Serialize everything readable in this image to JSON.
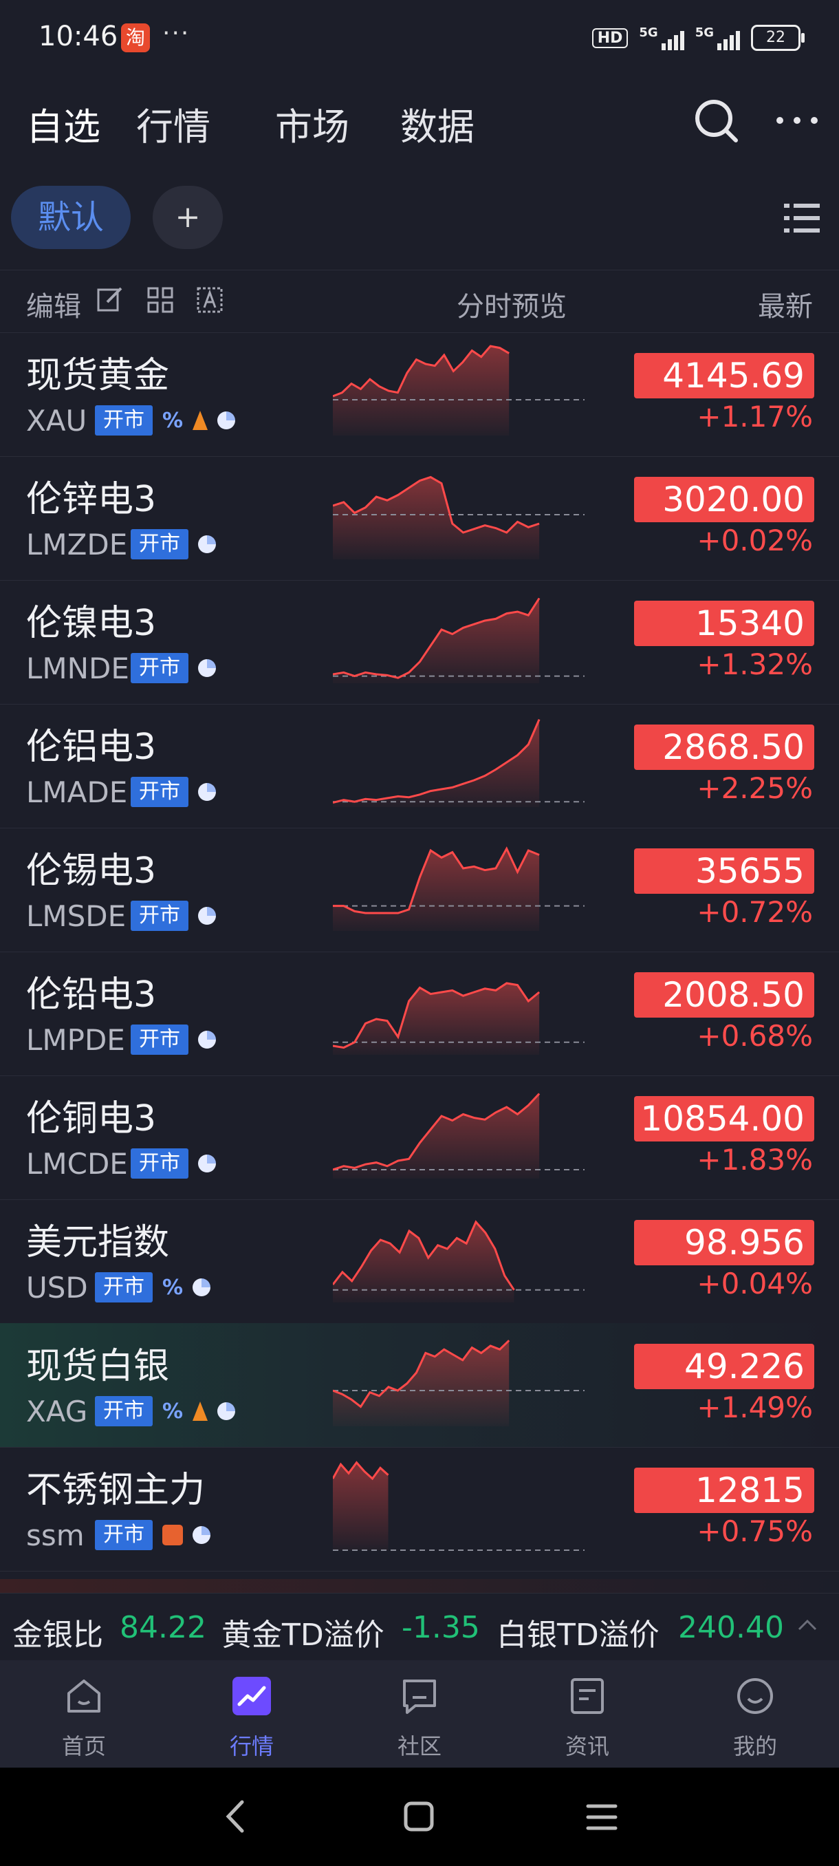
{
  "status_bar": {
    "time": "10:46",
    "app_badge": "淘",
    "dots": "···",
    "hd": "HD",
    "sig1": "5G",
    "sig2": "5G",
    "battery": "22"
  },
  "nav": {
    "tabs": [
      "自选",
      "行情",
      "市场",
      "数据"
    ]
  },
  "chips": {
    "default_label": "默认",
    "add_label": "+"
  },
  "header": {
    "edit_label": "编辑",
    "preview_label": "分时预览",
    "latest_label": "最新"
  },
  "open_label": "开市",
  "rows": [
    {
      "name": "现货黄金",
      "code": "XAU",
      "price": "4145.69",
      "change": "+1.17%",
      "icons": [
        "pct",
        "tower",
        "pie"
      ],
      "spark": {
        "points": [
          44,
          48,
          58,
          52,
          63,
          55,
          50,
          48,
          70,
          85,
          80,
          78,
          90,
          72,
          82,
          95,
          88,
          100,
          98,
          92
        ],
        "baseline": 40,
        "end": 0.7
      }
    },
    {
      "name": "伦锌电3",
      "code": "LMZDE",
      "price": "3020.00",
      "change": "+0.02%",
      "icons": [
        "pie"
      ],
      "spark": {
        "points": [
          60,
          64,
          52,
          58,
          70,
          66,
          72,
          80,
          88,
          92,
          85,
          40,
          30,
          34,
          38,
          35,
          30,
          42,
          36,
          40
        ],
        "baseline": 50,
        "end": 0.82
      }
    },
    {
      "name": "伦镍电3",
      "code": "LMNDE",
      "price": "15340",
      "change": "+1.32%",
      "icons": [
        "pie"
      ],
      "spark": {
        "points": [
          10,
          12,
          8,
          12,
          10,
          9,
          6,
          12,
          24,
          42,
          60,
          55,
          62,
          66,
          70,
          72,
          78,
          80,
          76,
          95
        ],
        "baseline": 8,
        "end": 0.82
      }
    },
    {
      "name": "伦铝电3",
      "code": "LMADE",
      "price": "2868.50",
      "change": "+2.25%",
      "icons": [
        "pie"
      ],
      "spark": {
        "points": [
          5,
          8,
          6,
          9,
          8,
          10,
          12,
          11,
          14,
          18,
          20,
          22,
          26,
          30,
          35,
          42,
          50,
          58,
          70,
          98
        ],
        "baseline": 6,
        "end": 0.82
      }
    },
    {
      "name": "伦锡电3",
      "code": "LMSDE",
      "price": "35655",
      "change": "+0.72%",
      "icons": [
        "pie"
      ],
      "spark": {
        "points": [
          28,
          28,
          22,
          20,
          20,
          20,
          20,
          24,
          60,
          90,
          82,
          88,
          70,
          72,
          68,
          70,
          92,
          66,
          90,
          85
        ],
        "baseline": 28,
        "end": 0.82
      }
    },
    {
      "name": "伦铅电3",
      "code": "LMPDE",
      "price": "2008.50",
      "change": "+0.68%",
      "icons": [
        "pie"
      ],
      "spark": {
        "points": [
          10,
          8,
          14,
          35,
          40,
          38,
          20,
          60,
          75,
          68,
          70,
          72,
          66,
          70,
          74,
          72,
          80,
          78,
          60,
          70
        ],
        "baseline": 14,
        "end": 0.82
      }
    },
    {
      "name": "伦铜电3",
      "code": "LMCDE",
      "price": "10854.00",
      "change": "+1.83%",
      "icons": [
        "pie"
      ],
      "spark": {
        "points": [
          10,
          14,
          12,
          16,
          18,
          14,
          20,
          22,
          40,
          55,
          70,
          65,
          72,
          68,
          66,
          74,
          80,
          72,
          82,
          95
        ],
        "baseline": 10,
        "end": 0.82
      }
    },
    {
      "name": "美元指数",
      "code": "USD",
      "price": "98.956",
      "change": "+0.04%",
      "icons": [
        "pct",
        "pie"
      ],
      "spark": {
        "points": [
          20,
          34,
          24,
          40,
          58,
          70,
          66,
          56,
          80,
          72,
          50,
          64,
          60,
          72,
          66,
          90,
          78,
          60,
          30,
          14
        ],
        "baseline": 14,
        "end": 0.72
      }
    },
    {
      "name": "现货白银",
      "code": "XAG",
      "price": "49.226",
      "change": "+1.49%",
      "icons": [
        "pct",
        "tower",
        "pie"
      ],
      "spark": {
        "points": [
          40,
          36,
          30,
          22,
          38,
          34,
          44,
          40,
          48,
          60,
          82,
          78,
          86,
          80,
          74,
          88,
          82,
          90,
          86,
          96
        ],
        "baseline": 40,
        "end": 0.7
      }
    },
    {
      "name": "不锈钢主力",
      "code": "ssm",
      "price": "12815",
      "change": "+0.75%",
      "icons": [
        "orange",
        "pie"
      ],
      "spark": {
        "points": [
          80,
          96,
          86,
          98,
          88,
          80,
          92,
          84
        ],
        "baseline": 0,
        "end": 0.22
      }
    }
  ],
  "ticker": {
    "label1": "金银比",
    "value1": "84.22",
    "label2": "黄金TD溢价",
    "value2": "-1.35",
    "label3": "白银TD溢价",
    "value3": "240.40"
  },
  "bottom_nav": {
    "items": [
      "首页",
      "行情",
      "社区",
      "资讯",
      "我的"
    ],
    "active": "行情"
  }
}
